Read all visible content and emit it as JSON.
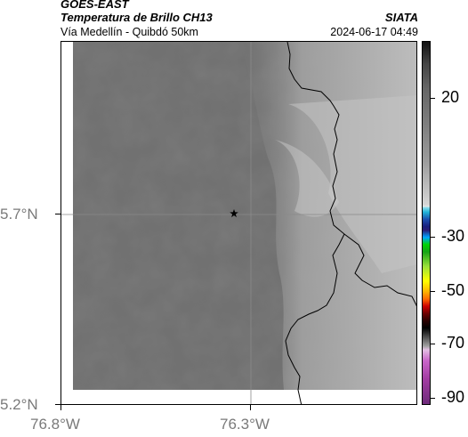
{
  "header": {
    "satellite": "GOES-EAST",
    "product": "Temperatura de Brillo CH13",
    "organization": "SIATA",
    "region": "Vía Medellín - Quibdó 50km",
    "timestamp": "2024-06-17 04:49"
  },
  "axes": {
    "lat_labels": [
      "5.7°N",
      "5.2°N"
    ],
    "lon_labels": [
      "76.8°W",
      "76.3°W"
    ]
  },
  "colorbar": {
    "labels": [
      "20",
      "-30",
      "-50",
      "-70",
      "-90"
    ]
  },
  "map": {
    "marker_icon": "star-icon",
    "gridlines": true,
    "colors": {
      "dark_gray": "#717171",
      "light_gray": "#b8b8b8",
      "boundary": "#000000"
    }
  }
}
